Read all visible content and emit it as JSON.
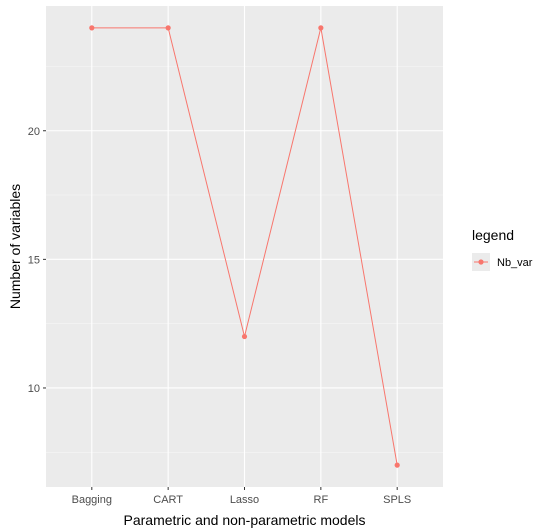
{
  "chart_data": {
    "type": "line",
    "title": "",
    "xlabel": "Parametric and non-parametric models",
    "ylabel": "Number of variables",
    "categories": [
      "Bagging",
      "CART",
      "Lasso",
      "RF",
      "SPLS"
    ],
    "series": [
      {
        "name": "Nb_var",
        "values": [
          24,
          24,
          12,
          24,
          7
        ]
      }
    ],
    "ylim": [
      6.15,
      24.85
    ],
    "yticks": [
      10,
      15,
      20
    ],
    "ytick_labels": [
      "10",
      "15",
      "20"
    ],
    "grid": true,
    "legend": {
      "title": "legend",
      "position": "right"
    },
    "colors": {
      "series": "#F8766D",
      "panel_background": "#EBEBEB",
      "major_grid": "#FFFFFF",
      "minor_grid": "#F5F5F5",
      "tick_label": "#4D4D4D"
    }
  }
}
